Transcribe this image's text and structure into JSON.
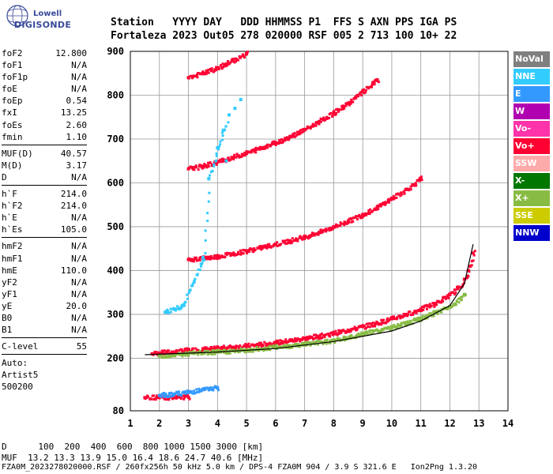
{
  "logo": {
    "line1": "Lowell",
    "line2": "DIGISONDE"
  },
  "header": {
    "line1": "Station   YYYY DAY   DDD HHMMSS P1  FFS S AXN PPS IGA PS",
    "line2": "Fortaleza 2023 Out05 278 020000 RSF 005 2 713 100 10+ 22"
  },
  "params": [
    {
      "name": "foF2",
      "value": "12.800"
    },
    {
      "name": "foF1",
      "value": "N/A"
    },
    {
      "name": "foF1p",
      "value": "N/A"
    },
    {
      "name": "foE",
      "value": "N/A"
    },
    {
      "name": "foEp",
      "value": "0.54"
    },
    {
      "name": "fxI",
      "value": "13.25"
    },
    {
      "name": "foEs",
      "value": "2.60"
    },
    {
      "name": "fmin",
      "value": "1.10"
    },
    {
      "sep": true
    },
    {
      "name": "MUF(D)",
      "value": "40.57"
    },
    {
      "name": "M(D)",
      "value": "3.17"
    },
    {
      "name": "D",
      "value": "N/A"
    },
    {
      "sep": true
    },
    {
      "name": "h`F",
      "value": "214.0"
    },
    {
      "name": "h`F2",
      "value": "214.0"
    },
    {
      "name": "h`E",
      "value": "N/A"
    },
    {
      "name": "h`Es",
      "value": "105.0"
    },
    {
      "sep": true
    },
    {
      "name": "hmF2",
      "value": "N/A"
    },
    {
      "name": "hmF1",
      "value": "N/A"
    },
    {
      "name": "hmE",
      "value": "110.0"
    },
    {
      "name": "yF2",
      "value": "N/A"
    },
    {
      "name": "yF1",
      "value": "N/A"
    },
    {
      "name": "yE",
      "value": "20.0"
    },
    {
      "name": "B0",
      "value": "N/A"
    },
    {
      "name": "B1",
      "value": "N/A"
    },
    {
      "sep": true
    },
    {
      "name": "C-level",
      "value": "55"
    },
    {
      "sep": true
    },
    {
      "text": "Auto:"
    },
    {
      "text": "Artist5"
    },
    {
      "text": "500200"
    }
  ],
  "legend": [
    {
      "label": "NoVal",
      "color": "#7f7f7f"
    },
    {
      "label": "NNE",
      "color": "#33ccff"
    },
    {
      "label": "E",
      "color": "#3399ff"
    },
    {
      "label": "W",
      "color": "#b000b0"
    },
    {
      "label": "Vo-",
      "color": "#ff33aa"
    },
    {
      "label": "Vo+",
      "color": "#ff0033"
    },
    {
      "label": "SSW",
      "color": "#ffaaaa"
    },
    {
      "label": "X-",
      "color": "#007700"
    },
    {
      "label": "X+",
      "color": "#88bb44"
    },
    {
      "label": "SSE",
      "color": "#cccc00"
    },
    {
      "label": "NNW",
      "color": "#0000cc"
    }
  ],
  "footer": {
    "line1": "D      100  200  400  600  800 1000 1500 3000 [km]",
    "line2": "MUF  13.2 13.3 13.9 15.0 16.4 18.6 24.7 40.6 [MHz]",
    "line3": "FZA0M_2023278020000.RSF / 260fx256h 50 kHz 5.0 km / DPS-4 FZA0M 904 / 3.9 S 321.6 E   Ion2Png 1.3.20"
  },
  "chart_data": {
    "type": "scatter",
    "title": "",
    "xlabel": "",
    "ylabel": "",
    "xlim": [
      1,
      14
    ],
    "ylim": [
      80,
      900
    ],
    "xticks": [
      1,
      2,
      3,
      4,
      5,
      6,
      7,
      8,
      9,
      10,
      11,
      12,
      13,
      14
    ],
    "yticks": [
      80,
      200,
      300,
      400,
      500,
      600,
      700,
      800,
      900
    ],
    "grid": true,
    "series": [
      {
        "name": "Vo+",
        "color": "#ff0033",
        "role": "F2 trace (1st hop)",
        "x": [
          1.75,
          2,
          2.5,
          3,
          3.5,
          4,
          4.5,
          5,
          5.5,
          6,
          6.5,
          7,
          7.5,
          8,
          8.5,
          9,
          9.5,
          10,
          10.5,
          11,
          11.5,
          12,
          12.3,
          12.5,
          12.7,
          12.8
        ],
        "y": [
          210,
          212,
          214,
          218,
          220,
          222,
          225,
          228,
          231,
          235,
          240,
          245,
          250,
          257,
          264,
          272,
          280,
          290,
          300,
          312,
          325,
          345,
          362,
          380,
          410,
          440
        ]
      },
      {
        "name": "Vo+",
        "color": "#ff0033",
        "role": "F2 2nd hop",
        "x": [
          3,
          3.5,
          4,
          4.5,
          5,
          5.5,
          6,
          6.5,
          7,
          7.5,
          8,
          8.5,
          9,
          9.5,
          10,
          10.5,
          11
        ],
        "y": [
          425,
          428,
          432,
          438,
          445,
          452,
          460,
          468,
          477,
          487,
          500,
          513,
          528,
          545,
          565,
          585,
          610
        ]
      },
      {
        "name": "Vo+",
        "color": "#ff0033",
        "role": "F2 3rd hop",
        "x": [
          3,
          3.5,
          4,
          4.5,
          5,
          5.5,
          6,
          6.5,
          7,
          7.5,
          8,
          8.5,
          9,
          9.5
        ],
        "y": [
          632,
          638,
          648,
          658,
          668,
          680,
          692,
          706,
          722,
          740,
          760,
          782,
          808,
          835
        ]
      },
      {
        "name": "Vo+",
        "color": "#ff0033",
        "role": "F2 4th hop",
        "x": [
          3,
          3.5,
          4,
          4.5,
          5
        ],
        "y": [
          840,
          850,
          862,
          878,
          895
        ]
      },
      {
        "name": "Vo+",
        "color": "#ff0033",
        "role": "Es",
        "x": [
          1.5,
          2,
          2.5,
          3
        ],
        "y": [
          110,
          110,
          110,
          111
        ]
      },
      {
        "name": "E",
        "color": "#3399ff",
        "role": "Es",
        "x": [
          2,
          2.5,
          3,
          3.5,
          4
        ],
        "y": [
          115,
          118,
          122,
          128,
          132
        ]
      },
      {
        "name": "X+",
        "color": "#88bb44",
        "role": "extraordinary",
        "x": [
          2,
          3,
          4,
          5,
          6,
          7,
          8,
          9,
          10,
          11,
          12,
          12.5
        ],
        "y": [
          205,
          210,
          214,
          218,
          225,
          232,
          240,
          255,
          270,
          290,
          318,
          345
        ]
      },
      {
        "name": "NNE",
        "color": "#33ccff",
        "role": "oblique echoes",
        "x": [
          2.2,
          2.8,
          3.5,
          3.7,
          4,
          4.2,
          4.4,
          4.6,
          4.8,
          4.3
        ],
        "y": [
          305,
          320,
          430,
          610,
          680,
          720,
          755,
          770,
          790,
          650
        ]
      }
    ],
    "profile": {
      "x": [
        1.5,
        4,
        6,
        8,
        10,
        11,
        12,
        12.5,
        12.8
      ],
      "y": [
        208,
        214,
        222,
        238,
        262,
        285,
        320,
        370,
        460
      ]
    }
  }
}
